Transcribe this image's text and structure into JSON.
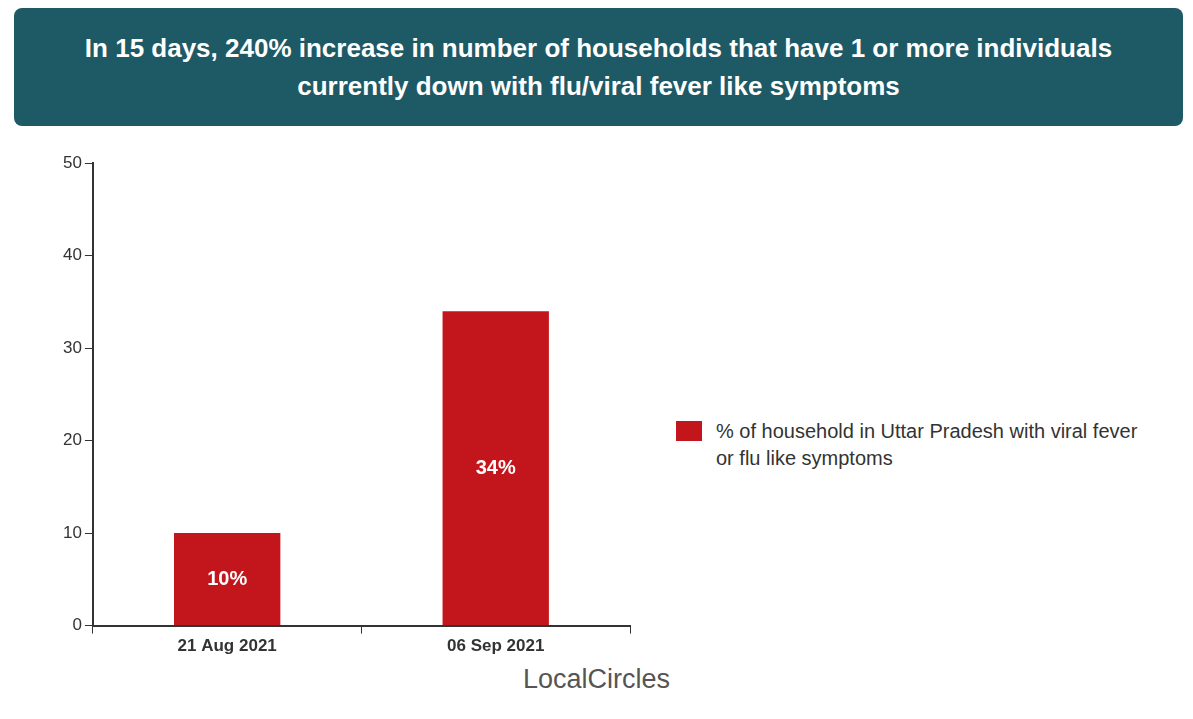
{
  "chart_data": {
    "type": "bar",
    "title": "In 15 days, 240% increase in number of households that have 1 or more individuals currently down with flu/viral fever like symptoms",
    "categories": [
      "21 Aug 2021",
      "06 Sep 2021"
    ],
    "series": [
      {
        "name": "% of household in Uttar Pradesh with viral fever or flu like symptoms",
        "color": "#c3161c",
        "values": [
          10,
          34
        ],
        "value_labels": [
          "10%",
          "34%"
        ]
      }
    ],
    "ylim": [
      0,
      50
    ],
    "yticks": [
      0,
      10,
      20,
      30,
      40,
      50
    ],
    "grid": false,
    "legend": "right",
    "data_labels": true,
    "source": "LocalCircles"
  }
}
